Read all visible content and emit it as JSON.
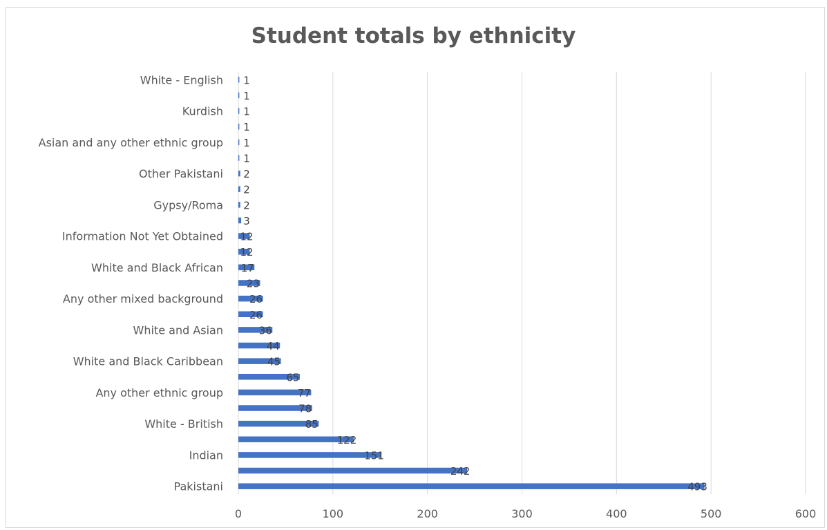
{
  "chart_data": {
    "type": "bar",
    "orientation": "horizontal",
    "title": "Student totals by ethnicity",
    "xlim": [
      0,
      600
    ],
    "x_ticks": [
      0,
      100,
      200,
      300,
      400,
      500,
      600
    ],
    "grid": "vertical",
    "legend": "none",
    "bar_color": "#4472C4",
    "categories": [
      "Pakistani",
      "",
      "Indian",
      "",
      "White - British",
      "",
      "Any other ethnic group",
      "",
      "White and Black Caribbean",
      "",
      "White and Asian",
      "",
      "Any other mixed background",
      "",
      "White and Black African",
      "",
      "Information Not Yet Obtained",
      "",
      "Gypsy/Roma",
      "",
      "Other Pakistani",
      "",
      "Asian and any other ethnic group",
      "",
      "Kurdish",
      "",
      "White - English"
    ],
    "values": [
      493,
      242,
      151,
      122,
      85,
      78,
      77,
      65,
      45,
      44,
      36,
      26,
      26,
      23,
      17,
      12,
      12,
      3,
      2,
      2,
      2,
      1,
      1,
      1,
      1,
      1,
      1
    ]
  }
}
